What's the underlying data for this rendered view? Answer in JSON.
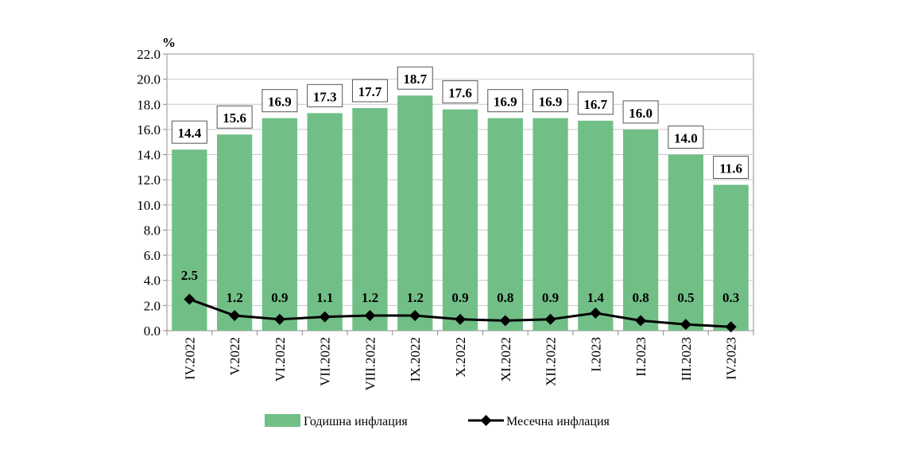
{
  "chart_data": {
    "type": "bar",
    "categories": [
      "IV.2022",
      "V.2022",
      "VI.2022",
      "VII.2022",
      "VIII.2022",
      "IX.2022",
      "X.2022",
      "XI.2022",
      "XII.2022",
      "I.2023",
      "II.2023",
      "III.2023",
      "IV.2023"
    ],
    "series": [
      {
        "name": "Годишна инфлация",
        "type": "bar",
        "values": [
          14.4,
          15.6,
          16.9,
          17.3,
          17.7,
          18.7,
          17.6,
          16.9,
          16.9,
          16.7,
          16.0,
          14.0,
          11.6
        ],
        "color": "#71bf87"
      },
      {
        "name": "Месечна инфлация",
        "type": "line",
        "values": [
          2.5,
          1.2,
          0.9,
          1.1,
          1.2,
          1.2,
          0.9,
          0.8,
          0.9,
          1.4,
          0.8,
          0.5,
          0.3
        ],
        "color": "#000000"
      }
    ],
    "ylabel": "%",
    "ylim": [
      0,
      22
    ],
    "ytick_step": 2,
    "grid": true,
    "legend_position": "bottom"
  }
}
